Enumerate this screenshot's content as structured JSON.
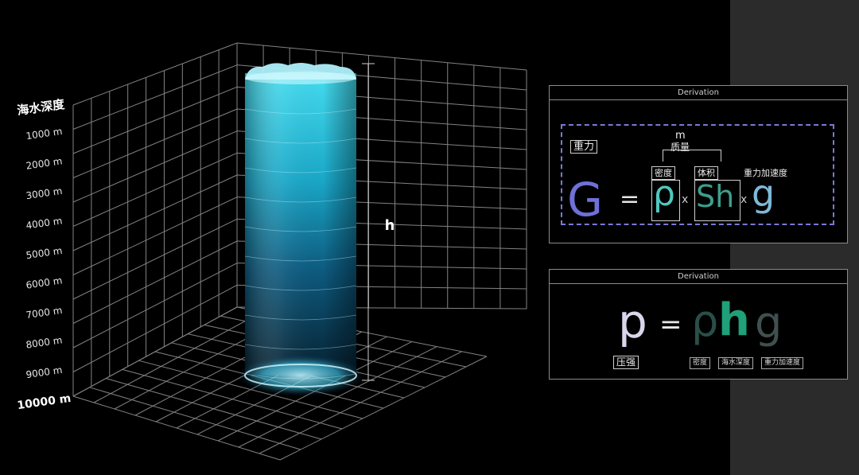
{
  "depth_axis": {
    "title": "海水深度",
    "ticks": [
      "1000 m",
      "2000 m",
      "3000 m",
      "4000 m",
      "5000 m",
      "6000 m",
      "7000 m",
      "8000 m",
      "9000 m",
      "10000 m"
    ]
  },
  "column": {
    "height_label": "h"
  },
  "panel_gravity": {
    "header": "Derivation",
    "gravity_tag": "重力",
    "mass_symbol": "m",
    "mass_label": "质量",
    "density_tag": "密度",
    "volume_tag": "体积",
    "accel_tag": "重力加速度",
    "G": "G",
    "equals": "=",
    "rho": "ρ",
    "times1": "x",
    "Sh": "Sh",
    "times2": "x",
    "g": "g"
  },
  "panel_pressure": {
    "header": "Derivation",
    "p": "p",
    "equals": "=",
    "rho": "ρ",
    "h": "h",
    "g": "g",
    "pressure_tag": "压强",
    "density_tag": "密度",
    "depth_tag": "海水深度",
    "accel_tag": "重力加速度"
  },
  "colors": {
    "background": "#000000",
    "grid": "#9a9a9a",
    "water_top": "#3fd6ec",
    "water_bottom": "#062335",
    "G": "#6f70d8",
    "rho": "#4fc8bf",
    "Sh": "#3f9e8c",
    "g": "#7fb8d8",
    "dash": "#7a78d6",
    "p_light": "#d8d6ec",
    "rho_dark": "#2a4e48",
    "h_green": "#1fa07a",
    "g_dark": "#40504e"
  }
}
